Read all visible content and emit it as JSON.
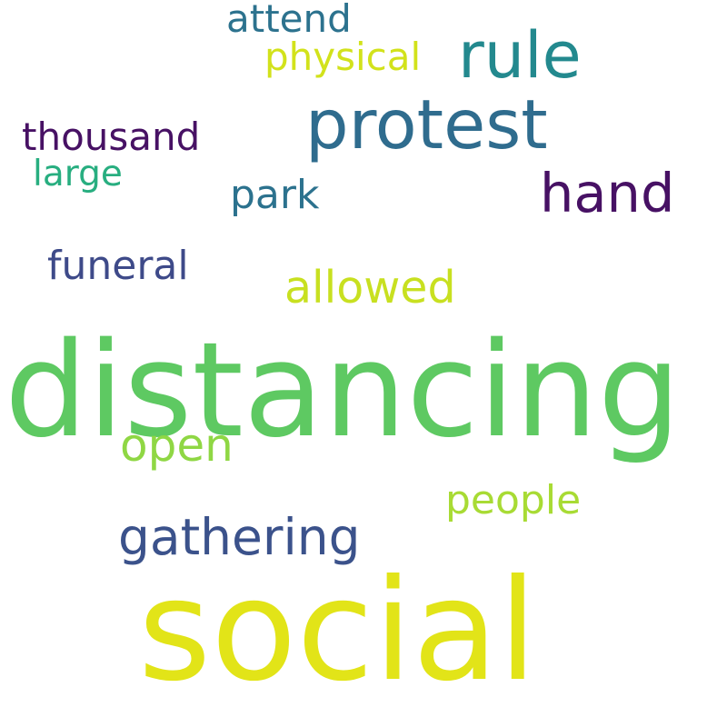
{
  "words": [
    {
      "text": "distancing",
      "color": "#5ec962"
    },
    {
      "text": "social",
      "color": "#e2e418"
    },
    {
      "text": "protest",
      "color": "#2f6c8e"
    },
    {
      "text": "rule",
      "color": "#23898e"
    },
    {
      "text": "hand",
      "color": "#471164"
    },
    {
      "text": "gathering",
      "color": "#3b528b"
    },
    {
      "text": "attend",
      "color": "#2c728e"
    },
    {
      "text": "physical",
      "color": "#d2e21b"
    },
    {
      "text": "thousand",
      "color": "#471164"
    },
    {
      "text": "large",
      "color": "#28ae80"
    },
    {
      "text": "park",
      "color": "#2c728e"
    },
    {
      "text": "funeral",
      "color": "#3e4a89"
    },
    {
      "text": "allowed",
      "color": "#c8e020"
    },
    {
      "text": "open",
      "color": "#8fd744"
    },
    {
      "text": "people",
      "color": "#a8db34"
    }
  ]
}
